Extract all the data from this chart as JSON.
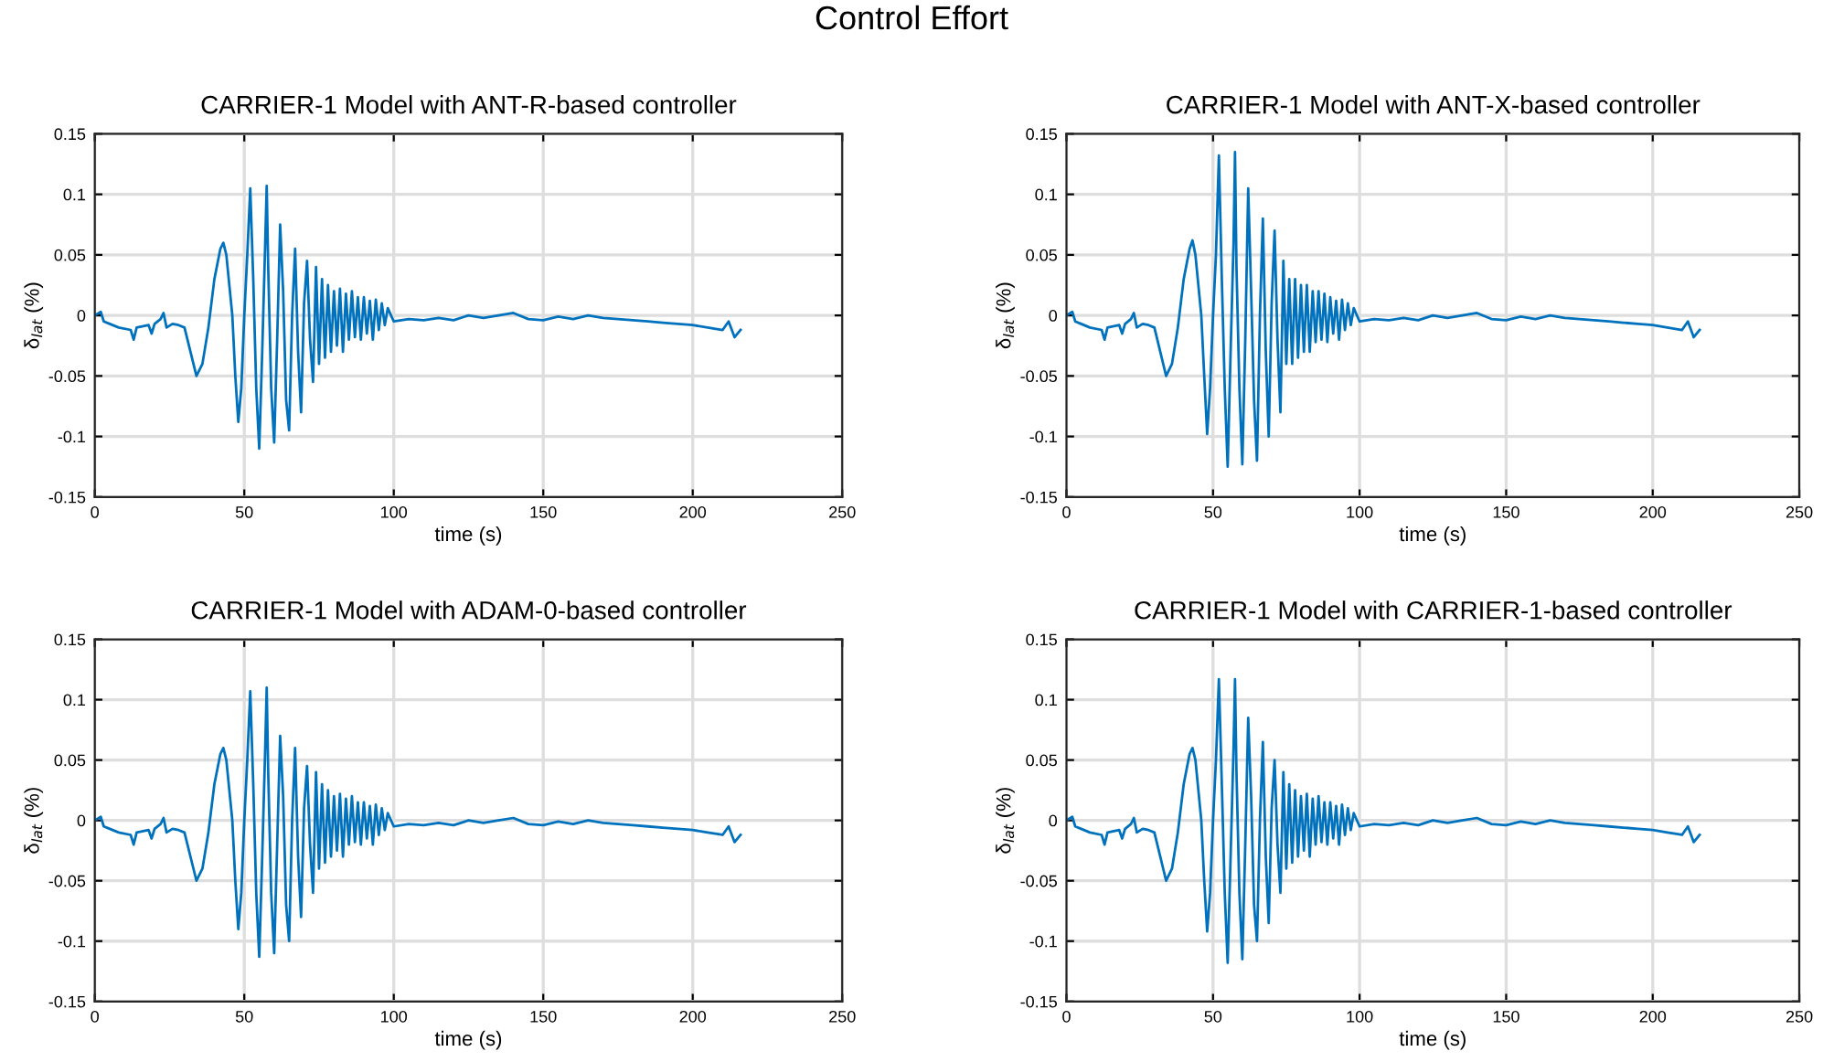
{
  "chart_data": [
    {
      "type": "line",
      "title": "CARRIER-1 Model with ANT-R-based controller",
      "annotations": [
        "Control Effort"
      ],
      "xlabel": "time (s)",
      "ylabel": "δ$_{lat}$ (%)",
      "xlim": [
        0,
        250
      ],
      "xticks": [
        0,
        50,
        100,
        150,
        200,
        250
      ],
      "ylim": [
        -0.15,
        0.15
      ],
      "yticks": [
        -0.15,
        -0.1,
        -0.05,
        0,
        0.05,
        0.1,
        0.15
      ],
      "grid": true,
      "marker": "none",
      "line_style": "solid",
      "series": [
        {
          "color": "#0072bd",
          "x": [
            0,
            2,
            3,
            5,
            8,
            12,
            13,
            14,
            18,
            19,
            20,
            22,
            23,
            24,
            26,
            28,
            30,
            31,
            33,
            34,
            36,
            38,
            40,
            42,
            43,
            44,
            46,
            47,
            48,
            49,
            50,
            51,
            52,
            53,
            54,
            55,
            56,
            57,
            57.5,
            58,
            59,
            60,
            61,
            62,
            63,
            64,
            65,
            66,
            67,
            68,
            69,
            70,
            71,
            72,
            73,
            74,
            75,
            76,
            77,
            78,
            79,
            80,
            81,
            82,
            83,
            84,
            85,
            86,
            87,
            88,
            89,
            90,
            91,
            92,
            93,
            94,
            95,
            96,
            97,
            98,
            100,
            105,
            110,
            115,
            120,
            125,
            130,
            135,
            140,
            145,
            150,
            155,
            160,
            165,
            170,
            175,
            180,
            185,
            190,
            195,
            200,
            205,
            210,
            212,
            214,
            216
          ],
          "values": [
            0,
            0.003,
            -0.005,
            -0.007,
            -0.01,
            -0.012,
            -0.02,
            -0.01,
            -0.008,
            -0.015,
            -0.007,
            -0.003,
            0.002,
            -0.01,
            -0.007,
            -0.008,
            -0.01,
            -0.02,
            -0.04,
            -0.05,
            -0.04,
            -0.01,
            0.03,
            0.055,
            0.06,
            0.05,
            0.0,
            -0.05,
            -0.088,
            -0.06,
            0.0,
            0.05,
            0.105,
            0.03,
            -0.06,
            -0.11,
            -0.03,
            0.06,
            0.107,
            0.04,
            -0.06,
            -0.105,
            -0.02,
            0.075,
            0.02,
            -0.07,
            -0.095,
            0.0,
            0.055,
            -0.03,
            -0.08,
            0.01,
            0.045,
            -0.02,
            -0.055,
            0.04,
            -0.04,
            0.03,
            -0.035,
            0.025,
            -0.03,
            0.02,
            -0.025,
            0.022,
            -0.03,
            0.018,
            -0.02,
            0.02,
            -0.018,
            0.015,
            -0.02,
            0.015,
            -0.015,
            0.012,
            -0.02,
            0.013,
            -0.012,
            0.01,
            -0.008,
            0.006,
            -0.005,
            -0.003,
            -0.004,
            -0.002,
            -0.004,
            0.0,
            -0.002,
            0.0,
            0.002,
            -0.003,
            -0.004,
            -0.001,
            -0.003,
            0.0,
            -0.002,
            -0.003,
            -0.004,
            -0.005,
            -0.006,
            -0.007,
            -0.008,
            -0.01,
            -0.012,
            -0.005,
            -0.018,
            -0.012
          ]
        }
      ]
    },
    {
      "type": "line",
      "title": "CARRIER-1 Model with ANT-X-based controller",
      "xlabel": "time (s)",
      "ylabel": "δ$_{lat}$ (%)",
      "xlim": [
        0,
        250
      ],
      "xticks": [
        0,
        50,
        100,
        150,
        200,
        250
      ],
      "ylim": [
        -0.15,
        0.15
      ],
      "yticks": [
        -0.15,
        -0.1,
        -0.05,
        0,
        0.05,
        0.1,
        0.15
      ],
      "grid": true,
      "marker": "none",
      "line_style": "solid",
      "series": [
        {
          "color": "#0072bd",
          "x": [
            0,
            2,
            3,
            5,
            8,
            12,
            13,
            14,
            18,
            19,
            20,
            22,
            23,
            24,
            26,
            28,
            30,
            31,
            33,
            34,
            36,
            38,
            40,
            42,
            43,
            44,
            46,
            47,
            48,
            49,
            50,
            51,
            52,
            53,
            54,
            55,
            56,
            57,
            57.5,
            58,
            59,
            60,
            61,
            62,
            63,
            64,
            65,
            66,
            67,
            68,
            69,
            70,
            71,
            72,
            73,
            74,
            75,
            76,
            77,
            78,
            79,
            80,
            81,
            82,
            83,
            84,
            85,
            86,
            87,
            88,
            89,
            90,
            91,
            92,
            93,
            94,
            95,
            96,
            97,
            98,
            100,
            105,
            110,
            115,
            120,
            125,
            130,
            135,
            140,
            145,
            150,
            155,
            160,
            165,
            170,
            175,
            180,
            185,
            190,
            195,
            200,
            205,
            210,
            212,
            214,
            216
          ],
          "values": [
            0,
            0.003,
            -0.005,
            -0.007,
            -0.01,
            -0.012,
            -0.02,
            -0.01,
            -0.008,
            -0.015,
            -0.007,
            -0.003,
            0.002,
            -0.01,
            -0.007,
            -0.008,
            -0.01,
            -0.02,
            -0.04,
            -0.05,
            -0.04,
            -0.01,
            0.03,
            0.055,
            0.062,
            0.05,
            0.0,
            -0.05,
            -0.098,
            -0.06,
            0.0,
            0.05,
            0.132,
            0.03,
            -0.06,
            -0.125,
            -0.03,
            0.06,
            0.135,
            0.04,
            -0.06,
            -0.123,
            -0.02,
            0.105,
            0.02,
            -0.07,
            -0.12,
            0.0,
            0.08,
            -0.03,
            -0.1,
            0.01,
            0.07,
            -0.02,
            -0.08,
            0.045,
            -0.04,
            0.03,
            -0.04,
            0.03,
            -0.035,
            0.025,
            -0.03,
            0.025,
            -0.03,
            0.02,
            -0.022,
            0.02,
            -0.02,
            0.018,
            -0.022,
            0.015,
            -0.015,
            0.012,
            -0.02,
            0.013,
            -0.012,
            0.01,
            -0.008,
            0.006,
            -0.005,
            -0.003,
            -0.004,
            -0.002,
            -0.004,
            0.0,
            -0.002,
            0.0,
            0.002,
            -0.003,
            -0.004,
            -0.001,
            -0.003,
            0.0,
            -0.002,
            -0.003,
            -0.004,
            -0.005,
            -0.006,
            -0.007,
            -0.008,
            -0.01,
            -0.012,
            -0.005,
            -0.018,
            -0.012
          ]
        }
      ]
    },
    {
      "type": "line",
      "title": "CARRIER-1 Model with ADAM-0-based controller",
      "xlabel": "time (s)",
      "ylabel": "δ$_{lat}$ (%)",
      "xlim": [
        0,
        250
      ],
      "xticks": [
        0,
        50,
        100,
        150,
        200,
        250
      ],
      "ylim": [
        -0.15,
        0.15
      ],
      "yticks": [
        -0.15,
        -0.1,
        -0.05,
        0,
        0.05,
        0.1,
        0.15
      ],
      "grid": true,
      "marker": "none",
      "line_style": "solid",
      "series": [
        {
          "color": "#0072bd",
          "x": [
            0,
            2,
            3,
            5,
            8,
            12,
            13,
            14,
            18,
            19,
            20,
            22,
            23,
            24,
            26,
            28,
            30,
            31,
            33,
            34,
            36,
            38,
            40,
            42,
            43,
            44,
            46,
            47,
            48,
            49,
            50,
            51,
            52,
            53,
            54,
            55,
            56,
            57,
            57.5,
            58,
            59,
            60,
            61,
            62,
            63,
            64,
            65,
            66,
            67,
            68,
            69,
            70,
            71,
            72,
            73,
            74,
            75,
            76,
            77,
            78,
            79,
            80,
            81,
            82,
            83,
            84,
            85,
            86,
            87,
            88,
            89,
            90,
            91,
            92,
            93,
            94,
            95,
            96,
            97,
            98,
            100,
            105,
            110,
            115,
            120,
            125,
            130,
            135,
            140,
            145,
            150,
            155,
            160,
            165,
            170,
            175,
            180,
            185,
            190,
            195,
            200,
            205,
            210,
            212,
            214,
            216
          ],
          "values": [
            0,
            0.003,
            -0.005,
            -0.007,
            -0.01,
            -0.012,
            -0.02,
            -0.01,
            -0.008,
            -0.015,
            -0.007,
            -0.003,
            0.002,
            -0.01,
            -0.007,
            -0.008,
            -0.01,
            -0.02,
            -0.04,
            -0.05,
            -0.04,
            -0.01,
            0.03,
            0.055,
            0.06,
            0.05,
            0.0,
            -0.05,
            -0.09,
            -0.06,
            0.0,
            0.05,
            0.107,
            0.03,
            -0.06,
            -0.113,
            -0.03,
            0.06,
            0.11,
            0.04,
            -0.06,
            -0.11,
            -0.02,
            0.07,
            0.02,
            -0.07,
            -0.1,
            0.0,
            0.06,
            -0.03,
            -0.08,
            0.01,
            0.045,
            -0.02,
            -0.06,
            0.04,
            -0.04,
            0.03,
            -0.035,
            0.025,
            -0.03,
            0.02,
            -0.025,
            0.022,
            -0.03,
            0.018,
            -0.02,
            0.02,
            -0.018,
            0.015,
            -0.02,
            0.015,
            -0.015,
            0.012,
            -0.02,
            0.013,
            -0.012,
            0.01,
            -0.008,
            0.006,
            -0.005,
            -0.003,
            -0.004,
            -0.002,
            -0.004,
            0.0,
            -0.002,
            0.0,
            0.002,
            -0.003,
            -0.004,
            -0.001,
            -0.003,
            0.0,
            -0.002,
            -0.003,
            -0.004,
            -0.005,
            -0.006,
            -0.007,
            -0.008,
            -0.01,
            -0.012,
            -0.005,
            -0.018,
            -0.012
          ]
        }
      ]
    },
    {
      "type": "line",
      "title": "CARRIER-1 Model with CARRIER-1-based controller",
      "xlabel": "time (s)",
      "ylabel": "δ$_{lat}$ (%)",
      "xlim": [
        0,
        250
      ],
      "xticks": [
        0,
        50,
        100,
        150,
        200,
        250
      ],
      "ylim": [
        -0.15,
        0.15
      ],
      "yticks": [
        -0.15,
        -0.1,
        -0.05,
        0,
        0.05,
        0.1,
        0.15
      ],
      "grid": true,
      "marker": "none",
      "line_style": "solid",
      "series": [
        {
          "color": "#0072bd",
          "x": [
            0,
            2,
            3,
            5,
            8,
            12,
            13,
            14,
            18,
            19,
            20,
            22,
            23,
            24,
            26,
            28,
            30,
            31,
            33,
            34,
            36,
            38,
            40,
            42,
            43,
            44,
            46,
            47,
            48,
            49,
            50,
            51,
            52,
            53,
            54,
            55,
            56,
            57,
            57.5,
            58,
            59,
            60,
            61,
            62,
            63,
            64,
            65,
            66,
            67,
            68,
            69,
            70,
            71,
            72,
            73,
            74,
            75,
            76,
            77,
            78,
            79,
            80,
            81,
            82,
            83,
            84,
            85,
            86,
            87,
            88,
            89,
            90,
            91,
            92,
            93,
            94,
            95,
            96,
            97,
            98,
            100,
            105,
            110,
            115,
            120,
            125,
            130,
            135,
            140,
            145,
            150,
            155,
            160,
            165,
            170,
            175,
            180,
            185,
            190,
            195,
            200,
            205,
            210,
            212,
            214,
            216
          ],
          "values": [
            0,
            0.003,
            -0.005,
            -0.007,
            -0.01,
            -0.012,
            -0.02,
            -0.01,
            -0.008,
            -0.015,
            -0.007,
            -0.003,
            0.002,
            -0.01,
            -0.007,
            -0.008,
            -0.01,
            -0.02,
            -0.04,
            -0.05,
            -0.04,
            -0.01,
            0.03,
            0.055,
            0.06,
            0.05,
            0.0,
            -0.05,
            -0.092,
            -0.06,
            0.0,
            0.05,
            0.117,
            0.03,
            -0.06,
            -0.118,
            -0.03,
            0.06,
            0.117,
            0.04,
            -0.06,
            -0.115,
            -0.02,
            0.085,
            0.02,
            -0.07,
            -0.1,
            0.0,
            0.065,
            -0.03,
            -0.085,
            0.01,
            0.05,
            -0.02,
            -0.06,
            0.04,
            -0.04,
            0.03,
            -0.035,
            0.025,
            -0.03,
            0.02,
            -0.025,
            0.022,
            -0.03,
            0.018,
            -0.02,
            0.02,
            -0.018,
            0.015,
            -0.02,
            0.015,
            -0.015,
            0.012,
            -0.02,
            0.013,
            -0.012,
            0.01,
            -0.008,
            0.006,
            -0.005,
            -0.003,
            -0.004,
            -0.002,
            -0.004,
            0.0,
            -0.002,
            0.0,
            0.002,
            -0.003,
            -0.004,
            -0.001,
            -0.003,
            0.0,
            -0.002,
            -0.003,
            -0.004,
            -0.005,
            -0.006,
            -0.007,
            -0.008,
            -0.01,
            -0.012,
            -0.005,
            -0.018,
            -0.012
          ]
        }
      ]
    }
  ]
}
